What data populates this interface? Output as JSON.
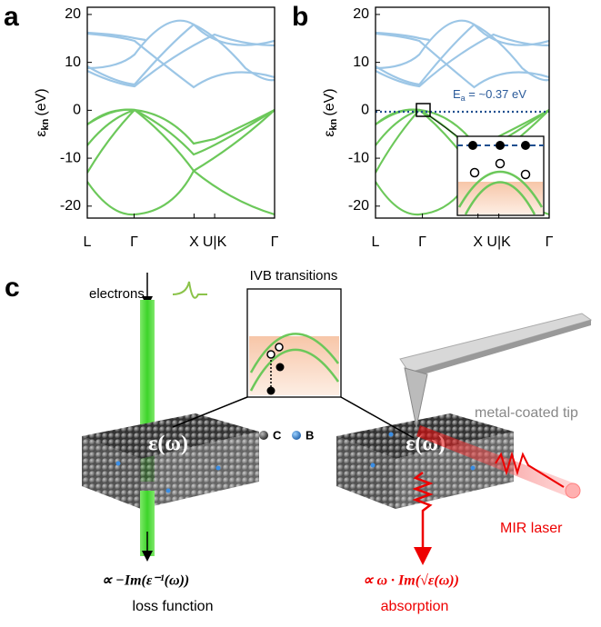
{
  "panels": [
    {
      "label": "a",
      "ylabel": {
        "symbol": "ε",
        "subscript": "kn",
        "unit": "(eV)"
      },
      "ylim": [
        -22.5,
        21.5
      ],
      "yticks": [
        20,
        10,
        0,
        -10,
        -20
      ],
      "xlim": [
        0,
        1
      ],
      "xticks": [
        {
          "value": 0,
          "label": "L"
        },
        {
          "value": 0.25,
          "label": "Γ"
        },
        {
          "value": 0.57,
          "label": "X"
        },
        {
          "value": 0.68,
          "label": "U|K"
        },
        {
          "value": 1,
          "label": "Γ"
        }
      ]
    },
    {
      "label": "b",
      "ylabel": {
        "symbol": "ε",
        "subscript": "kn",
        "unit": "(eV)"
      },
      "ylim": [
        -22.5,
        21.5
      ],
      "yticks": [
        20,
        10,
        0,
        -10,
        -20
      ],
      "xlim": [
        0,
        1
      ],
      "xticks": [
        {
          "value": 0,
          "label": "L"
        },
        {
          "value": 0.27,
          "label": "Γ"
        },
        {
          "value": 0.59,
          "label": "X"
        },
        {
          "value": 0.71,
          "label": "U|K"
        },
        {
          "value": 1,
          "label": "Γ"
        }
      ],
      "annotation": {
        "symbol": "E",
        "subscript": "a",
        "text": " = ~0.37 eV"
      }
    }
  ],
  "schematic": {
    "label": "c",
    "beam": "electrons",
    "inset": "IVB transitions",
    "legend": [
      "C",
      "B"
    ],
    "tip": "metal-coated tip",
    "permittivity": "ε(ω)",
    "laser": "MIR laser",
    "left_formula": "∝ −Im(ε⁻¹(ω))",
    "left_caption": "loss function",
    "right_formula": "∝ ω · Im(√ε(ω))",
    "right_caption": "absorption"
  }
}
